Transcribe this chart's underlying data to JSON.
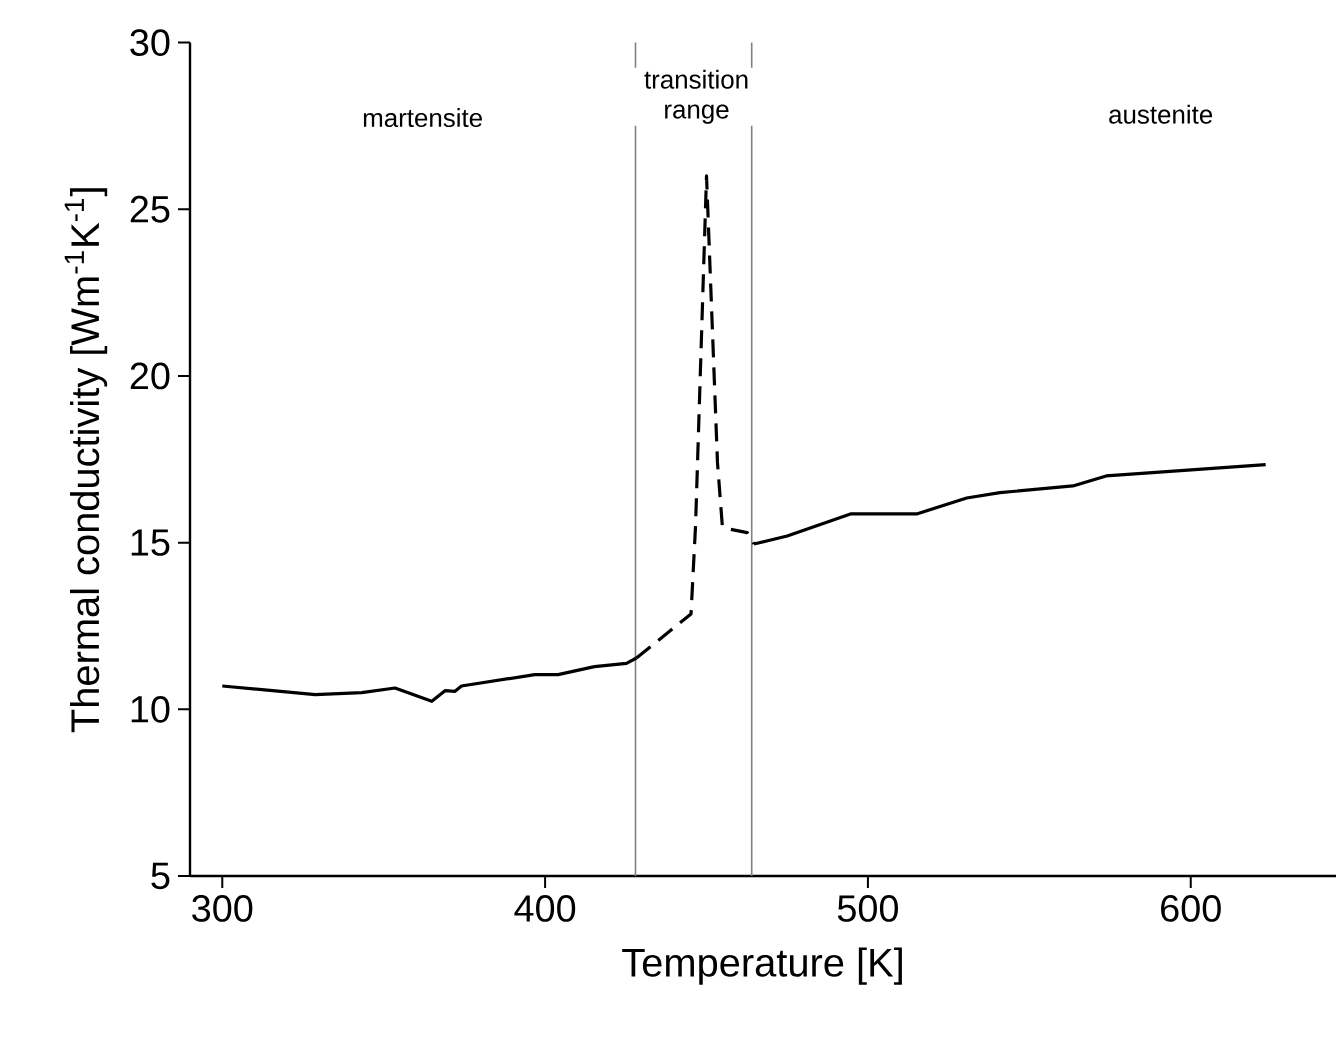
{
  "chart_data": {
    "type": "line",
    "xlabel": "Temperature [K]",
    "ylabel": "Thermal conductivity [Wm$^{-1}$K$^{-1}$]",
    "xlim": [
      290,
      645
    ],
    "ylim": [
      5,
      30
    ],
    "xticks": [
      300,
      400,
      500,
      600
    ],
    "yticks": [
      5,
      10,
      15,
      20,
      25,
      30
    ],
    "marker": "none",
    "grid": false,
    "series": [
      {
        "color": "#000000",
        "line_style": "solid",
        "x": [
          300,
          328.8,
          343.2,
          353.5,
          364.9,
          369,
          372.1,
          374.1,
          396.8,
          404,
          415.3,
          425.2,
          428.3
        ],
        "values": [
          10.7,
          10.44,
          10.5,
          10.64,
          10.24,
          10.56,
          10.54,
          10.7,
          11.04,
          11.04,
          11.28,
          11.38,
          11.54
        ]
      },
      {
        "color": "#000000",
        "line_style": "dashed",
        "x": [
          428.3,
          445.2,
          446.6,
          450,
          453.4,
          454.9,
          457.5,
          462.6,
          464.7
        ],
        "values": [
          11.54,
          12.86,
          15.5,
          26,
          17.4,
          15.5,
          15.4,
          15.3,
          14.96
        ]
      },
      {
        "color": "#000000",
        "line_style": "solid",
        "x": [
          464.7,
          475,
          494.6,
          515.1,
          530.6,
          540.9,
          563.5,
          573.8,
          623.2
        ],
        "values": [
          14.96,
          15.2,
          15.86,
          15.86,
          16.34,
          16.5,
          16.7,
          17,
          17.34
        ]
      }
    ],
    "ref_lines": [
      {
        "axis": "x",
        "value": 428,
        "color": "#808080"
      },
      {
        "axis": "x",
        "value": 464,
        "color": "#808080"
      }
    ],
    "annotations": [
      "martensite",
      "transition range",
      "austenite"
    ]
  }
}
